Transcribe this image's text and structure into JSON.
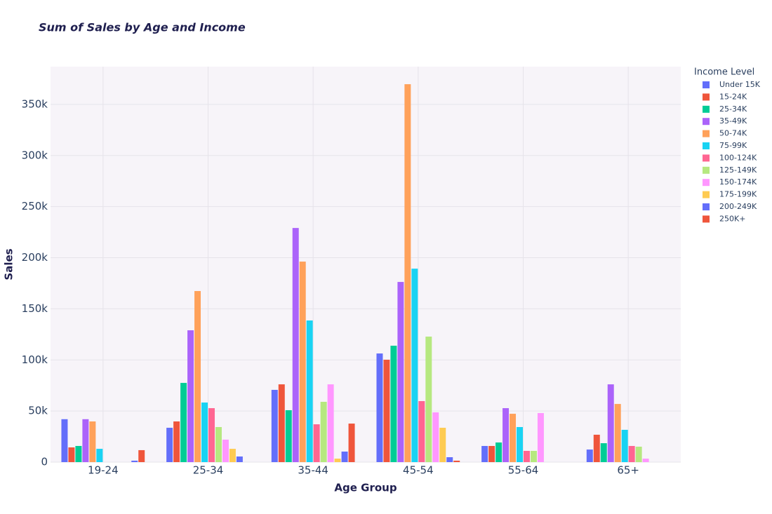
{
  "chart_data": {
    "type": "bar",
    "title": "Sum of Sales by Age and Income",
    "x_label": "Age Group",
    "y_label": "Sales",
    "legend_title": "Income Level",
    "legend_position": "right",
    "grid": true,
    "categories": [
      "19-24",
      "25-34",
      "35-44",
      "45-54",
      "55-64",
      "65+"
    ],
    "ylim": [
      0,
      387000
    ],
    "yticks": [
      0,
      {
        "value": 50000,
        "label": "50k"
      },
      {
        "value": 100000,
        "label": "100k"
      },
      {
        "value": 150000,
        "label": "150k"
      },
      {
        "value": 200000,
        "label": "200k"
      },
      {
        "value": 250000,
        "label": "250k"
      },
      {
        "value": 300000,
        "label": "300k"
      },
      {
        "value": 350000,
        "label": "350k"
      }
    ],
    "series": [
      {
        "name": "Under 15K",
        "color": "#636efa",
        "values": [
          42000,
          33600,
          70700,
          106300,
          15800,
          12300
        ]
      },
      {
        "name": "15-24K",
        "color": "#ef553b",
        "values": [
          14400,
          39800,
          76100,
          100200,
          15800,
          26800
        ]
      },
      {
        "name": "25-34K",
        "color": "#00cc96",
        "values": [
          15800,
          77500,
          50800,
          113900,
          19200,
          18500
        ]
      },
      {
        "name": "35-49K",
        "color": "#ab63fa",
        "values": [
          42000,
          129000,
          229100,
          176300,
          52800,
          76100
        ]
      },
      {
        "name": "50-74K",
        "color": "#ffa15a",
        "values": [
          39800,
          167400,
          196200,
          369800,
          47300,
          56900
        ]
      },
      {
        "name": "75-99K",
        "color": "#19d3f3",
        "values": [
          13000,
          58300,
          138600,
          189300,
          34300,
          31600
        ]
      },
      {
        "name": "100-124K",
        "color": "#ff6692",
        "values": [
          null,
          52800,
          37000,
          59700,
          11000,
          15800
        ]
      },
      {
        "name": "125-149K",
        "color": "#b6e880",
        "values": [
          null,
          34300,
          59000,
          122800,
          11000,
          15100
        ]
      },
      {
        "name": "150-174K",
        "color": "#ff97ff",
        "values": [
          null,
          22000,
          76100,
          48700,
          48000,
          3400
        ]
      },
      {
        "name": "175-199K",
        "color": "#fecb52",
        "values": [
          null,
          13000,
          3400,
          33600,
          null,
          null
        ]
      },
      {
        "name": "200-249K",
        "color": "#636efa",
        "values": [
          1400,
          5500,
          10300,
          4800,
          null,
          null
        ]
      },
      {
        "name": "250K+",
        "color": "#ef553b",
        "values": [
          11700,
          null,
          37700,
          1400,
          null,
          null
        ]
      }
    ]
  }
}
